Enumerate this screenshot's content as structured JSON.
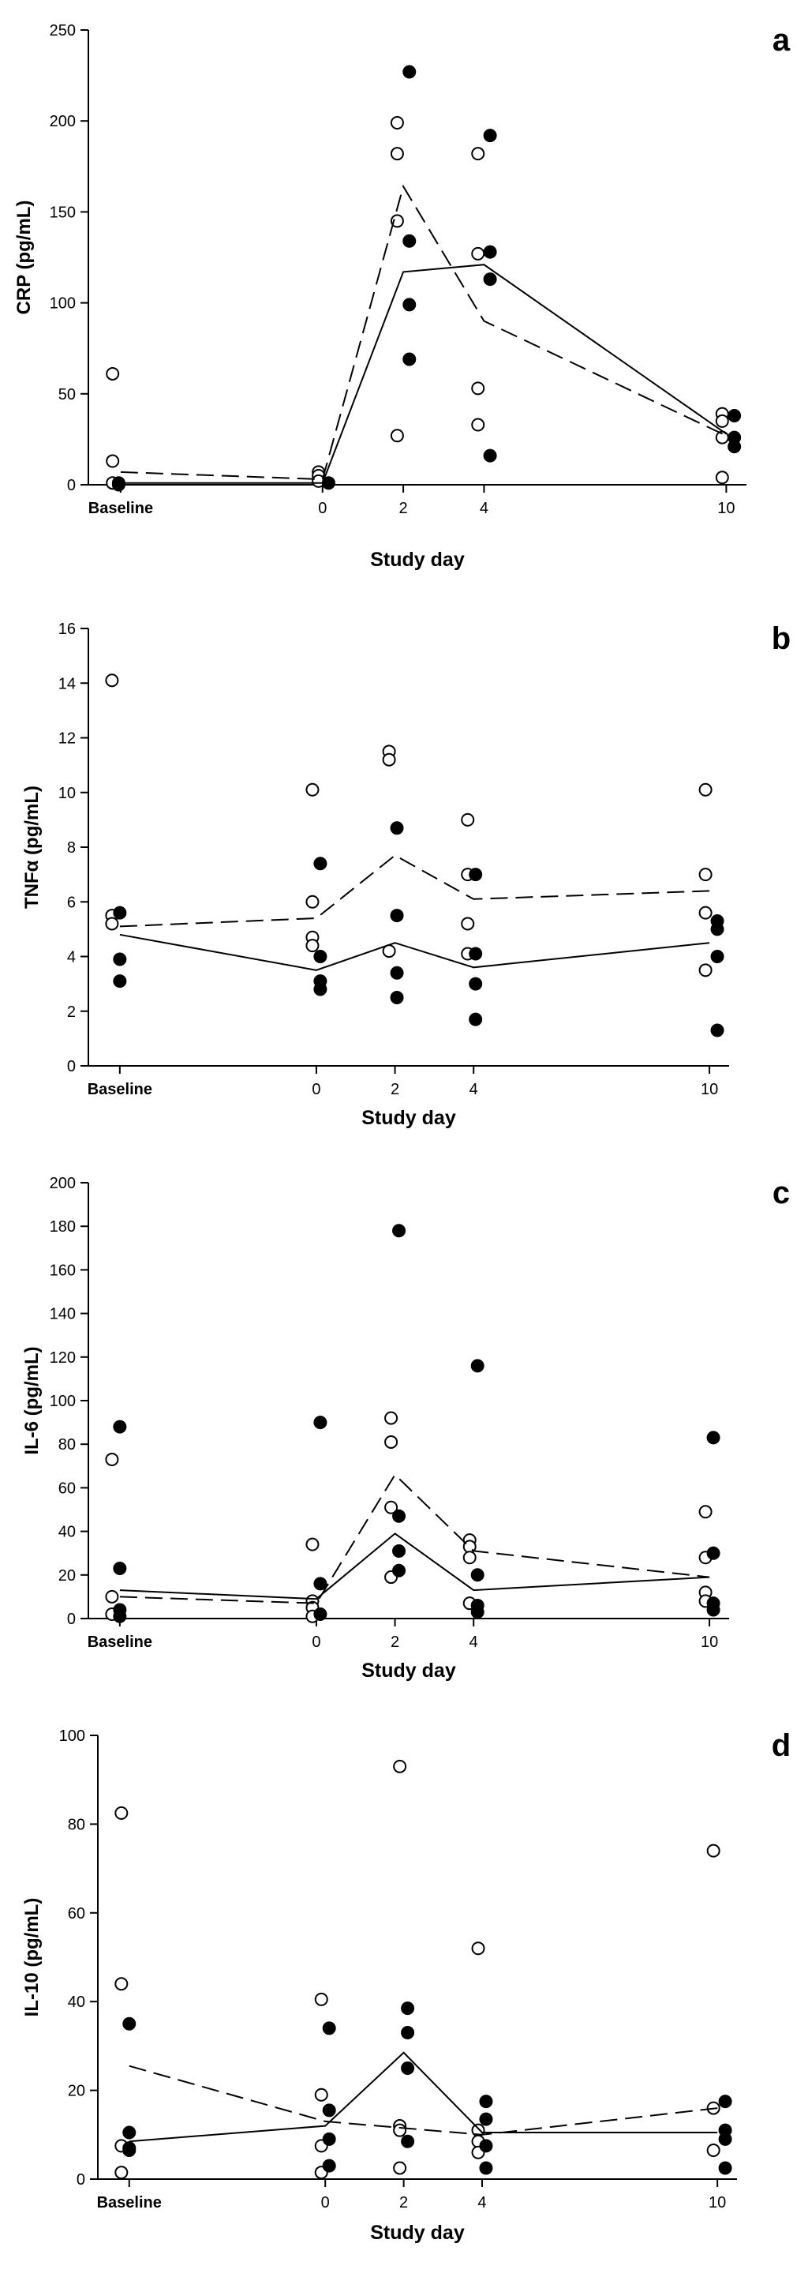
{
  "chart_data": [
    {
      "type": "scatter",
      "panel_label": "a",
      "xlabel": "Study day",
      "ylabel": "CRP (pg/mL)",
      "xlim": [
        -5.8,
        10.5
      ],
      "ylim": [
        0,
        250
      ],
      "x_ticks": [
        -5,
        0,
        2,
        4,
        10
      ],
      "x_tick_labels": [
        "Baseline",
        "0",
        "2",
        "4",
        "10"
      ],
      "y_ticks": [
        0,
        50,
        100,
        150,
        200,
        250
      ],
      "y_tick_labels": [
        "0",
        "50",
        "100",
        "150",
        "200",
        "250"
      ],
      "series": [
        {
          "marker": "open-circle",
          "points": [
            [
              -5.2,
              61
            ],
            [
              -5.2,
              13
            ],
            [
              -5.2,
              1
            ],
            [
              -0.1,
              7
            ],
            [
              -0.1,
              5
            ],
            [
              -0.1,
              2
            ],
            [
              1.85,
              199
            ],
            [
              1.85,
              182
            ],
            [
              1.85,
              145
            ],
            [
              1.85,
              27
            ],
            [
              3.85,
              182
            ],
            [
              3.85,
              127
            ],
            [
              3.85,
              53
            ],
            [
              3.85,
              33
            ],
            [
              9.9,
              39
            ],
            [
              9.9,
              35
            ],
            [
              9.9,
              26
            ],
            [
              9.9,
              4
            ]
          ]
        },
        {
          "marker": "filled-circle",
          "points": [
            [
              -5.05,
              1
            ],
            [
              -5.05,
              0
            ],
            [
              0.15,
              1
            ],
            [
              2.15,
              227
            ],
            [
              2.15,
              134
            ],
            [
              2.15,
              99
            ],
            [
              2.15,
              69
            ],
            [
              4.15,
              192
            ],
            [
              4.15,
              128
            ],
            [
              4.15,
              113
            ],
            [
              4.15,
              16
            ],
            [
              10.2,
              38
            ],
            [
              10.2,
              26
            ],
            [
              10.2,
              21
            ]
          ]
        },
        {
          "line": "dashed",
          "points": [
            [
              -5,
              7
            ],
            [
              0,
              3
            ],
            [
              2,
              164
            ],
            [
              4,
              90
            ],
            [
              10,
              27
            ]
          ]
        },
        {
          "line": "solid",
          "points": [
            [
              -5,
              1
            ],
            [
              0,
              1
            ],
            [
              2,
              117
            ],
            [
              4,
              121
            ],
            [
              10,
              28
            ]
          ]
        }
      ]
    },
    {
      "type": "scatter",
      "panel_label": "b",
      "xlabel": "Study day",
      "ylabel": "TNFα (pg/mL)",
      "xlim": [
        -5.8,
        10.5
      ],
      "ylim": [
        0,
        16
      ],
      "x_ticks": [
        -5,
        0,
        2,
        4,
        10
      ],
      "x_tick_labels": [
        "Baseline",
        "0",
        "2",
        "4",
        "10"
      ],
      "y_ticks": [
        0,
        2,
        4,
        6,
        8,
        10,
        12,
        14,
        16
      ],
      "y_tick_labels": [
        "0",
        "2",
        "4",
        "6",
        "8",
        "10",
        "12",
        "14",
        "16"
      ],
      "series": [
        {
          "marker": "open-circle",
          "points": [
            [
              -5.2,
              14.1
            ],
            [
              -5.2,
              5.5
            ],
            [
              -5.2,
              5.2
            ],
            [
              -0.1,
              10.1
            ],
            [
              -0.1,
              6.0
            ],
            [
              -0.1,
              4.7
            ],
            [
              -0.1,
              4.4
            ],
            [
              1.85,
              11.5
            ],
            [
              1.85,
              11.2
            ],
            [
              1.85,
              4.2
            ],
            [
              3.85,
              9.0
            ],
            [
              3.85,
              7.0
            ],
            [
              3.85,
              5.2
            ],
            [
              3.85,
              4.1
            ],
            [
              9.9,
              10.1
            ],
            [
              9.9,
              7.0
            ],
            [
              9.9,
              5.6
            ],
            [
              9.9,
              3.5
            ]
          ]
        },
        {
          "marker": "filled-circle",
          "points": [
            [
              -5.0,
              5.6
            ],
            [
              -5.0,
              3.9
            ],
            [
              -5.0,
              3.1
            ],
            [
              0.1,
              7.4
            ],
            [
              0.1,
              4.0
            ],
            [
              0.1,
              3.1
            ],
            [
              0.1,
              2.8
            ],
            [
              2.05,
              8.7
            ],
            [
              2.05,
              5.5
            ],
            [
              2.05,
              3.4
            ],
            [
              2.05,
              2.5
            ],
            [
              4.05,
              7.0
            ],
            [
              4.05,
              4.1
            ],
            [
              4.05,
              3.0
            ],
            [
              4.05,
              1.7
            ],
            [
              10.2,
              5.3
            ],
            [
              10.2,
              5.0
            ],
            [
              10.2,
              4.0
            ],
            [
              10.2,
              1.3
            ]
          ]
        },
        {
          "line": "dashed",
          "points": [
            [
              -5,
              5.1
            ],
            [
              0,
              5.4
            ],
            [
              2,
              7.7
            ],
            [
              4,
              6.1
            ],
            [
              10,
              6.4
            ]
          ]
        },
        {
          "line": "solid",
          "points": [
            [
              -5,
              4.8
            ],
            [
              0,
              3.5
            ],
            [
              2,
              4.5
            ],
            [
              4,
              3.6
            ],
            [
              10,
              4.5
            ]
          ]
        }
      ]
    },
    {
      "type": "scatter",
      "panel_label": "c",
      "xlabel": "Study day",
      "ylabel": "IL-6 (pg/mL)",
      "xlim": [
        -5.8,
        10.5
      ],
      "ylim": [
        0,
        200
      ],
      "x_ticks": [
        -5,
        0,
        2,
        4,
        10
      ],
      "x_tick_labels": [
        "Baseline",
        "0",
        "2",
        "4",
        "10"
      ],
      "y_ticks": [
        0,
        20,
        40,
        60,
        80,
        100,
        120,
        140,
        160,
        180,
        200
      ],
      "y_tick_labels": [
        "0",
        "20",
        "40",
        "60",
        "80",
        "100",
        "120",
        "140",
        "160",
        "180",
        "200"
      ],
      "series": [
        {
          "marker": "open-circle",
          "points": [
            [
              -5.2,
              73
            ],
            [
              -5.2,
              10
            ],
            [
              -5.2,
              2
            ],
            [
              -0.1,
              34
            ],
            [
              -0.1,
              8
            ],
            [
              -0.1,
              5
            ],
            [
              -0.1,
              1
            ],
            [
              1.9,
              92
            ],
            [
              1.9,
              81
            ],
            [
              1.9,
              51
            ],
            [
              1.9,
              19
            ],
            [
              3.9,
              36
            ],
            [
              3.9,
              33
            ],
            [
              3.9,
              28
            ],
            [
              3.9,
              7
            ],
            [
              9.9,
              49
            ],
            [
              9.9,
              28
            ],
            [
              9.9,
              12
            ],
            [
              9.9,
              8
            ]
          ]
        },
        {
          "marker": "filled-circle",
          "points": [
            [
              -5.0,
              88
            ],
            [
              -5.0,
              23
            ],
            [
              -5.0,
              4
            ],
            [
              -5.0,
              1
            ],
            [
              0.1,
              90
            ],
            [
              0.1,
              16
            ],
            [
              0.1,
              2
            ],
            [
              2.1,
              178
            ],
            [
              2.1,
              47
            ],
            [
              2.1,
              31
            ],
            [
              2.1,
              22
            ],
            [
              4.1,
              116
            ],
            [
              4.1,
              20
            ],
            [
              4.1,
              6
            ],
            [
              4.1,
              3
            ],
            [
              10.1,
              83
            ],
            [
              10.1,
              30
            ],
            [
              10.1,
              7
            ],
            [
              10.1,
              4
            ]
          ]
        },
        {
          "line": "dashed",
          "points": [
            [
              -5,
              10
            ],
            [
              0,
              7
            ],
            [
              2,
              66
            ],
            [
              4,
              31
            ],
            [
              10,
              19
            ]
          ]
        },
        {
          "line": "solid",
          "points": [
            [
              -5,
              13
            ],
            [
              0,
              9
            ],
            [
              2,
              39
            ],
            [
              4,
              13
            ],
            [
              10,
              19
            ]
          ]
        }
      ]
    },
    {
      "type": "scatter",
      "panel_label": "d",
      "xlabel": "Study day",
      "ylabel": "IL-10 (pg/mL)",
      "xlim": [
        -5.8,
        10.5
      ],
      "ylim": [
        0,
        100
      ],
      "x_ticks": [
        -5,
        0,
        2,
        4,
        10
      ],
      "x_tick_labels": [
        "Baseline",
        "0",
        "2",
        "4",
        "10"
      ],
      "y_ticks": [
        0,
        20,
        40,
        60,
        80,
        100
      ],
      "y_tick_labels": [
        "0",
        "20",
        "40",
        "60",
        "80",
        "100"
      ],
      "series": [
        {
          "marker": "open-circle",
          "points": [
            [
              -5.2,
              82.5
            ],
            [
              -5.2,
              44
            ],
            [
              -5.2,
              7.5
            ],
            [
              -5.2,
              1.5
            ],
            [
              -0.1,
              40.5
            ],
            [
              -0.1,
              19
            ],
            [
              -0.1,
              7.5
            ],
            [
              -0.1,
              1.5
            ],
            [
              1.9,
              93
            ],
            [
              1.9,
              12
            ],
            [
              1.9,
              11
            ],
            [
              1.9,
              2.5
            ],
            [
              3.9,
              52
            ],
            [
              3.9,
              11
            ],
            [
              3.9,
              8.5
            ],
            [
              3.9,
              6
            ],
            [
              9.9,
              74
            ],
            [
              9.9,
              16
            ],
            [
              9.9,
              6.5
            ]
          ]
        },
        {
          "marker": "filled-circle",
          "points": [
            [
              -5.0,
              35
            ],
            [
              -5.0,
              10.5
            ],
            [
              -5.0,
              7
            ],
            [
              -5.0,
              6.5
            ],
            [
              0.1,
              34
            ],
            [
              0.1,
              15.5
            ],
            [
              0.1,
              9
            ],
            [
              0.1,
              3
            ],
            [
              2.1,
              38.5
            ],
            [
              2.1,
              33
            ],
            [
              2.1,
              25
            ],
            [
              2.1,
              8.5
            ],
            [
              4.1,
              17.5
            ],
            [
              4.1,
              13.5
            ],
            [
              4.1,
              7.5
            ],
            [
              4.1,
              2.5
            ],
            [
              10.2,
              17.5
            ],
            [
              10.2,
              11
            ],
            [
              10.2,
              9
            ],
            [
              10.2,
              2.5
            ]
          ]
        },
        {
          "line": "dashed",
          "points": [
            [
              -5,
              25.5
            ],
            [
              0,
              13
            ],
            [
              2,
              11.5
            ],
            [
              4,
              10
            ],
            [
              10,
              16
            ]
          ]
        },
        {
          "line": "solid",
          "points": [
            [
              -5,
              8.5
            ],
            [
              0,
              12
            ],
            [
              2,
              28.5
            ],
            [
              4,
              10.5
            ],
            [
              10,
              10.5
            ]
          ]
        }
      ]
    }
  ]
}
